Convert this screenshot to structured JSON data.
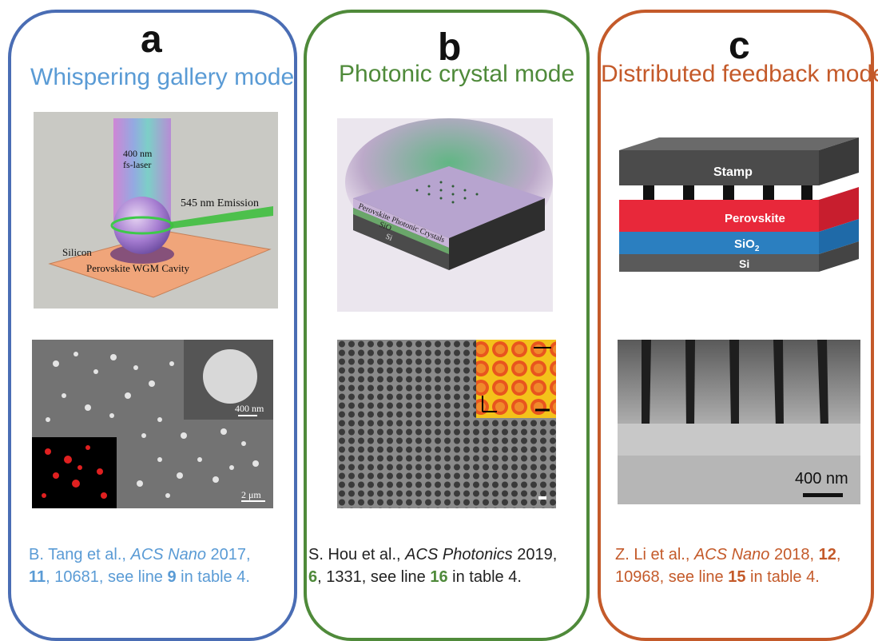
{
  "panels": [
    {
      "letter": "a",
      "title": "Whispering gallery mode",
      "title_color": "#5a9bd5",
      "schematic": {
        "laser_line1": "400 nm",
        "laser_line2": "fs-laser",
        "emission": "545 nm  Emission",
        "substrate": "Silicon",
        "cavity": "Perovskite  WGM Cavity"
      },
      "sem": {
        "inset_scale": "400 nm",
        "scale": "2 μm"
      },
      "caption": {
        "authors": "B. Tang et al., ",
        "journal": "ACS Nano",
        "year": " 2017, ",
        "volume": "11",
        "pages": ", 10681, see line ",
        "line": "9",
        "tail": " in table 4."
      }
    },
    {
      "letter": "b",
      "title": "Photonic crystal mode",
      "title_color": "#4f8a3a",
      "schematic": {
        "layer1": "Perovskite Photonic Crystals",
        "layer2": "SiO",
        "layer3": "Si"
      },
      "caption": {
        "authors": "S. Hou et al., ",
        "journal": "ACS Photonics",
        "year": " 2019, ",
        "volume": "6",
        "pages": ", 1331, see line ",
        "line": "16",
        "tail": " in table 4."
      }
    },
    {
      "letter": "c",
      "title": "Distributed feedback mode",
      "title_color": "#c45a2a",
      "schematic": {
        "stamp": "Stamp",
        "perovskite": "Perovskite",
        "sio2": "SiO",
        "sio2_sub": "2",
        "si": "Si"
      },
      "sem": {
        "scale": "400 nm"
      },
      "caption": {
        "authors": "Z. Li et al., ",
        "journal": "ACS Nano",
        "year": " 2018, ",
        "volume": "12",
        "pages": "10968, see line ",
        "line": "15",
        "tail": " in table 4."
      }
    }
  ]
}
